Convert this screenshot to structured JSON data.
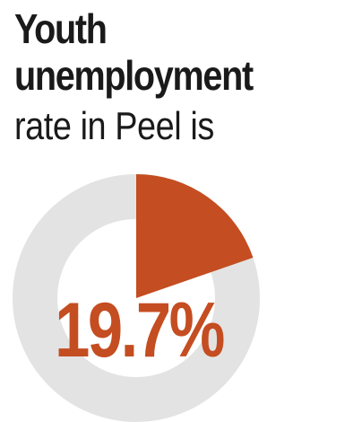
{
  "title": {
    "line1": "Youth",
    "line2": "unemployment",
    "line3": "rate in Peel is"
  },
  "colors": {
    "highlight": "#c44d21",
    "remainder": "#e3e3e3",
    "text": "#1a1a1a"
  },
  "chart_data": {
    "type": "pie",
    "title": "Youth unemployment rate in Peel is",
    "series": [
      {
        "name": "",
        "value": 19.7
      },
      {
        "name": "",
        "value": 80.3
      }
    ],
    "value_label": "19.7%"
  }
}
